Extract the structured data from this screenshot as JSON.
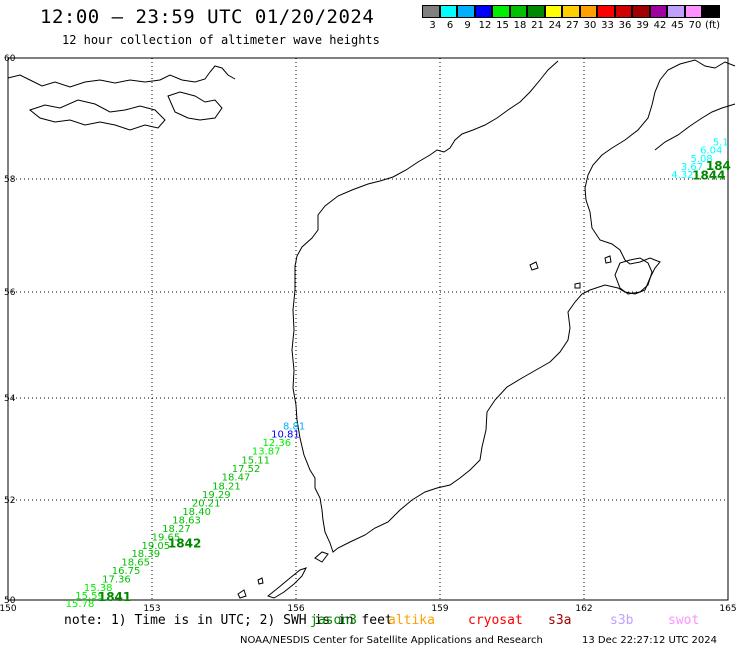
{
  "header": {
    "title": "12:00 – 23:59 UTC 01/20/2024",
    "subtitle": "12 hour collection of altimeter wave heights"
  },
  "colorbar": {
    "colors": [
      "#808080",
      "#00ffff",
      "#00b0ff",
      "#0000ff",
      "#00ee00",
      "#00c000",
      "#008800",
      "#ffff00",
      "#ffd000",
      "#ffa000",
      "#ff0000",
      "#d00000",
      "#a00000",
      "#a000a0",
      "#c0a0ff",
      "#ff90ff",
      "#000000"
    ],
    "labels": [
      "3",
      "6",
      "9",
      "12",
      "15",
      "18",
      "21",
      "24",
      "27",
      "30",
      "33",
      "36",
      "39",
      "42",
      "45",
      "70",
      "(ft)"
    ]
  },
  "map": {
    "lon_ticks": [
      "150",
      "153",
      "156",
      "159",
      "162",
      "165"
    ],
    "lat_ticks": [
      "60",
      "58",
      "56",
      "54",
      "52",
      "50"
    ],
    "extent": {
      "lon": [
        150,
        165
      ],
      "lat": [
        50,
        60
      ]
    },
    "grid": true
  },
  "tracks": [
    {
      "points": [
        {
          "lon": 155.96,
          "lat": 53.38,
          "label": "8.81",
          "color": "#00b0ff"
        },
        {
          "lon": 155.78,
          "lat": 53.23,
          "label": "10.81",
          "color": "#0000ff"
        },
        {
          "lon": 155.6,
          "lat": 53.06,
          "label": "12.36",
          "color": "#00ee00"
        },
        {
          "lon": 155.38,
          "lat": 52.89,
          "label": "13.87",
          "color": "#00ee00"
        },
        {
          "lon": 155.16,
          "lat": 52.72,
          "label": "15.11",
          "color": "#00c000"
        },
        {
          "lon": 154.96,
          "lat": 52.55,
          "label": "17.52",
          "color": "#00c000"
        },
        {
          "lon": 154.75,
          "lat": 52.38,
          "label": "18.47",
          "color": "#00c000"
        },
        {
          "lon": 154.55,
          "lat": 52.21,
          "label": "18.21",
          "color": "#00c000"
        },
        {
          "lon": 154.34,
          "lat": 52.04,
          "label": "19.29",
          "color": "#00c000"
        },
        {
          "lon": 154.13,
          "lat": 51.87,
          "label": "20.21",
          "color": "#00c000"
        },
        {
          "lon": 153.93,
          "lat": 51.7,
          "label": "18.40",
          "color": "#00c000"
        },
        {
          "lon": 153.72,
          "lat": 51.53,
          "label": "18.63",
          "color": "#00c000"
        },
        {
          "lon": 153.51,
          "lat": 51.36,
          "label": "18.27",
          "color": "#00c000"
        },
        {
          "lon": 153.29,
          "lat": 51.19,
          "label": "19.65",
          "color": "#00c000"
        },
        {
          "lon": 153.08,
          "lat": 51.02,
          "label": "19.05",
          "color": "#00c000"
        },
        {
          "lon": 152.87,
          "lat": 50.86,
          "label": "18.39",
          "color": "#00c000"
        },
        {
          "lon": 152.66,
          "lat": 50.69,
          "label": "18.65",
          "color": "#00c000"
        },
        {
          "lon": 152.46,
          "lat": 50.52,
          "label": "16.75",
          "color": "#00c000"
        },
        {
          "lon": 152.26,
          "lat": 50.35,
          "label": "17.36",
          "color": "#00c000"
        },
        {
          "lon": 151.88,
          "lat": 50.18,
          "label": "15.38",
          "color": "#00ee00"
        },
        {
          "lon": 151.7,
          "lat": 50.02,
          "label": "15.59",
          "color": "#00ee00"
        },
        {
          "lon": 151.5,
          "lat": 49.86,
          "label": "15.78",
          "color": "#00ee00"
        }
      ],
      "time_labels": [
        {
          "lon": 153.68,
          "lat": 51.05,
          "text": "1842",
          "color": "#008800"
        },
        {
          "lon": 152.22,
          "lat": 49.98,
          "text": "1841",
          "color": "#008800"
        }
      ]
    },
    {
      "points": [
        {
          "lon": 164.85,
          "lat": 58.55,
          "label": "5.1",
          "color": "#00ffff"
        },
        {
          "lon": 164.65,
          "lat": 58.42,
          "label": "6.04",
          "color": "#00ffff"
        },
        {
          "lon": 164.45,
          "lat": 58.28,
          "label": "5.08",
          "color": "#00ffff"
        },
        {
          "lon": 164.25,
          "lat": 58.15,
          "label": "3.67",
          "color": "#00ffff"
        },
        {
          "lon": 164.05,
          "lat": 58.02,
          "label": "4.32",
          "color": "#00ffff"
        }
      ],
      "time_labels": [
        {
          "lon": 164.8,
          "lat": 58.15,
          "text": "184",
          "color": "#008800"
        },
        {
          "lon": 164.6,
          "lat": 57.99,
          "text": "1844",
          "color": "#008800"
        }
      ]
    }
  ],
  "footer": {
    "note": "note: 1) Time is in UTC; 2) SWH is in feet",
    "satellites": [
      {
        "name": "jason3",
        "color": "#008800"
      },
      {
        "name": "altika",
        "color": "#ffa000"
      },
      {
        "name": "cryosat",
        "color": "#ff0000"
      },
      {
        "name": "s3a",
        "color": "#a00000"
      },
      {
        "name": "s3b",
        "color": "#c0a0ff"
      },
      {
        "name": "swot",
        "color": "#ff90ff"
      }
    ],
    "credit": "NOAA/NESDIS Center for Satellite Applications and Research",
    "timestamp": "13 Dec 22:27:12 UTC 2024"
  }
}
